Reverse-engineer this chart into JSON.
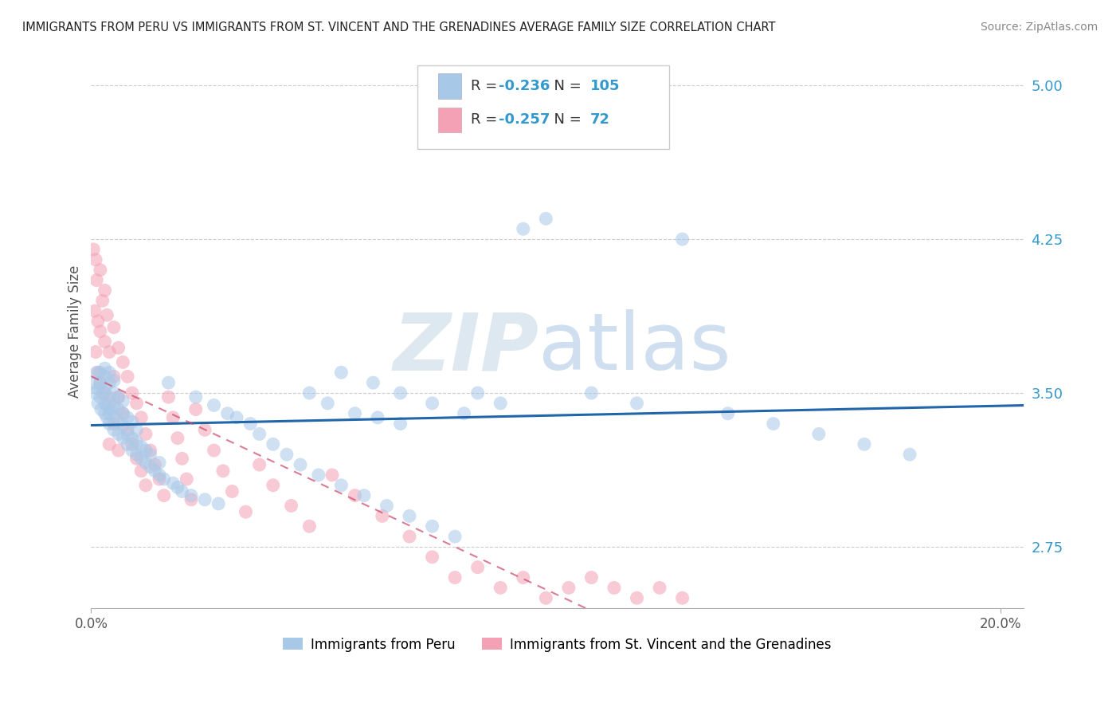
{
  "title": "IMMIGRANTS FROM PERU VS IMMIGRANTS FROM ST. VINCENT AND THE GRENADINES AVERAGE FAMILY SIZE CORRELATION CHART",
  "source": "Source: ZipAtlas.com",
  "ylabel": "Average Family Size",
  "r_peru": -0.236,
  "n_peru": 105,
  "r_svg": -0.257,
  "n_svg": 72,
  "ylim": [
    2.45,
    5.15
  ],
  "xlim": [
    0.0,
    0.205
  ],
  "yticks": [
    2.75,
    3.5,
    4.25,
    5.0
  ],
  "color_peru": "#a8c8e8",
  "color_svg": "#f4a0b5",
  "color_line_peru": "#2266aa",
  "color_line_svg": "#cc4466",
  "legend_label_peru": "Immigrants from Peru",
  "legend_label_svg": "Immigrants from St. Vincent and the Grenadines",
  "peru_x": [
    0.0008,
    0.001,
    0.0012,
    0.0015,
    0.0015,
    0.002,
    0.002,
    0.002,
    0.0022,
    0.0025,
    0.003,
    0.003,
    0.003,
    0.003,
    0.003,
    0.0035,
    0.0035,
    0.004,
    0.004,
    0.004,
    0.004,
    0.004,
    0.0045,
    0.005,
    0.005,
    0.005,
    0.005,
    0.005,
    0.006,
    0.006,
    0.006,
    0.006,
    0.007,
    0.007,
    0.007,
    0.007,
    0.008,
    0.008,
    0.008,
    0.009,
    0.009,
    0.009,
    0.01,
    0.01,
    0.01,
    0.011,
    0.011,
    0.012,
    0.012,
    0.013,
    0.013,
    0.014,
    0.015,
    0.015,
    0.016,
    0.017,
    0.018,
    0.019,
    0.02,
    0.022,
    0.023,
    0.025,
    0.027,
    0.028,
    0.03,
    0.032,
    0.035,
    0.037,
    0.04,
    0.043,
    0.046,
    0.05,
    0.055,
    0.06,
    0.065,
    0.07,
    0.075,
    0.08,
    0.085,
    0.09,
    0.095,
    0.1,
    0.11,
    0.12,
    0.13,
    0.14,
    0.15,
    0.16,
    0.17,
    0.18,
    0.055,
    0.062,
    0.068,
    0.075,
    0.082,
    0.048,
    0.052,
    0.058,
    0.063,
    0.068
  ],
  "peru_y": [
    3.5,
    3.55,
    3.6,
    3.45,
    3.52,
    3.48,
    3.55,
    3.6,
    3.42,
    3.5,
    3.4,
    3.45,
    3.52,
    3.58,
    3.62,
    3.38,
    3.44,
    3.35,
    3.4,
    3.48,
    3.55,
    3.6,
    3.42,
    3.32,
    3.38,
    3.44,
    3.5,
    3.56,
    3.3,
    3.36,
    3.42,
    3.48,
    3.28,
    3.34,
    3.4,
    3.46,
    3.25,
    3.3,
    3.38,
    3.22,
    3.28,
    3.36,
    3.2,
    3.26,
    3.32,
    3.18,
    3.24,
    3.16,
    3.22,
    3.14,
    3.2,
    3.12,
    3.1,
    3.16,
    3.08,
    3.55,
    3.06,
    3.04,
    3.02,
    3.0,
    3.48,
    2.98,
    3.44,
    2.96,
    3.4,
    3.38,
    3.35,
    3.3,
    3.25,
    3.2,
    3.15,
    3.1,
    3.05,
    3.0,
    2.95,
    2.9,
    2.85,
    2.8,
    3.5,
    3.45,
    4.3,
    4.35,
    3.5,
    3.45,
    4.25,
    3.4,
    3.35,
    3.3,
    3.25,
    3.2,
    3.6,
    3.55,
    3.5,
    3.45,
    3.4,
    3.5,
    3.45,
    3.4,
    3.38,
    3.35
  ],
  "svg_x": [
    0.0005,
    0.0008,
    0.001,
    0.001,
    0.0012,
    0.0015,
    0.0015,
    0.002,
    0.002,
    0.002,
    0.0025,
    0.003,
    0.003,
    0.003,
    0.0035,
    0.004,
    0.004,
    0.004,
    0.005,
    0.005,
    0.005,
    0.006,
    0.006,
    0.006,
    0.007,
    0.007,
    0.008,
    0.008,
    0.009,
    0.009,
    0.01,
    0.01,
    0.011,
    0.011,
    0.012,
    0.012,
    0.013,
    0.014,
    0.015,
    0.016,
    0.017,
    0.018,
    0.019,
    0.02,
    0.021,
    0.022,
    0.023,
    0.025,
    0.027,
    0.029,
    0.031,
    0.034,
    0.037,
    0.04,
    0.044,
    0.048,
    0.053,
    0.058,
    0.064,
    0.07,
    0.075,
    0.08,
    0.085,
    0.09,
    0.095,
    0.1,
    0.105,
    0.11,
    0.115,
    0.12,
    0.125,
    0.13
  ],
  "svg_y": [
    4.2,
    3.9,
    4.15,
    3.7,
    4.05,
    3.85,
    3.6,
    4.1,
    3.8,
    3.55,
    3.95,
    4.0,
    3.75,
    3.5,
    3.88,
    3.7,
    3.45,
    3.25,
    3.82,
    3.58,
    3.35,
    3.72,
    3.48,
    3.22,
    3.65,
    3.4,
    3.58,
    3.32,
    3.5,
    3.25,
    3.45,
    3.18,
    3.38,
    3.12,
    3.3,
    3.05,
    3.22,
    3.15,
    3.08,
    3.0,
    3.48,
    3.38,
    3.28,
    3.18,
    3.08,
    2.98,
    3.42,
    3.32,
    3.22,
    3.12,
    3.02,
    2.92,
    3.15,
    3.05,
    2.95,
    2.85,
    3.1,
    3.0,
    2.9,
    2.8,
    2.7,
    2.6,
    2.65,
    2.55,
    2.6,
    2.5,
    2.55,
    2.6,
    2.55,
    2.5,
    2.55,
    2.5
  ]
}
